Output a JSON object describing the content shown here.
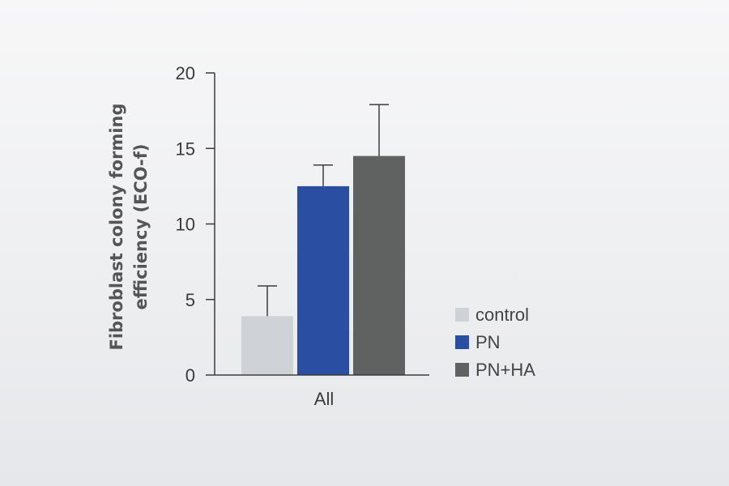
{
  "chart_data": {
    "type": "bar",
    "categories": [
      "All"
    ],
    "series": [
      {
        "name": "control",
        "values": [
          3.9
        ],
        "error": [
          2.0
        ],
        "color": "#cfd2d6"
      },
      {
        "name": "PN",
        "values": [
          12.5
        ],
        "error": [
          1.4
        ],
        "color": "#2a4fa2"
      },
      {
        "name": "PN+HA",
        "values": [
          14.5
        ],
        "error": [
          3.4
        ],
        "color": "#606161"
      }
    ],
    "ylabel_lines": [
      "Fibroblast colony forming",
      "efficiency (ECO-f)"
    ],
    "xlabel": "",
    "ylim": [
      0,
      20
    ],
    "yticks": [
      {
        "value": 0,
        "label": "0"
      },
      {
        "value": 5,
        "label": "5"
      },
      {
        "value": 10,
        "label": "10"
      },
      {
        "value": 15,
        "label": "15"
      },
      {
        "value": 20,
        "label": "20"
      }
    ],
    "grid": false,
    "legend_position": "right"
  }
}
